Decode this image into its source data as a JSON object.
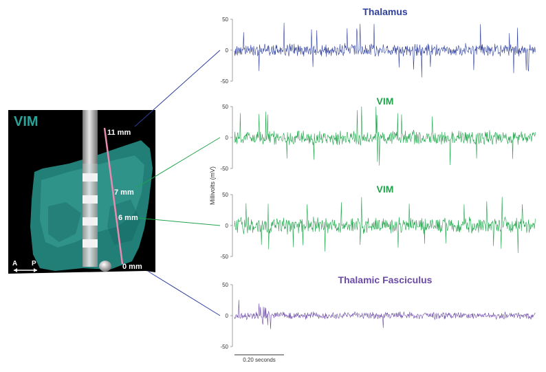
{
  "anatomy": {
    "label": "VIM",
    "orientation": {
      "anterior": "A",
      "posterior": "P"
    },
    "depth_markers": [
      {
        "id": "11",
        "label": "11 mm"
      },
      {
        "id": "7",
        "label": "7 mm"
      },
      {
        "id": "6",
        "label": "6 mm"
      },
      {
        "id": "0",
        "label": "0 mm"
      }
    ]
  },
  "y_axis_label": "Millivolts (mV)",
  "scale_bar_label": "0.20 seconds",
  "colors": {
    "thalamus": "#2e3f9c",
    "vim": "#1fa34a",
    "fasciculus": "#6a4aa6",
    "volume": "#2aa398",
    "lead_pink": "#e98ab0",
    "connector_blue": "#2e3f9c",
    "connector_green": "#1fa34a"
  },
  "traces": [
    {
      "id": "thalamus",
      "title": "Thalamus",
      "color": "#2e3f9c",
      "ticks": [
        "50",
        "0",
        "-50"
      ]
    },
    {
      "id": "vim1",
      "title": "VIM",
      "color": "#1fa34a",
      "ticks": [
        "50",
        "0",
        "-50"
      ]
    },
    {
      "id": "vim2",
      "title": "VIM",
      "color": "#1fa34a",
      "ticks": [
        "50",
        "0",
        "-50"
      ]
    },
    {
      "id": "fasciculus",
      "title": "Thalamic Fasciculus",
      "color": "#6a4aa6",
      "ticks": [
        "50",
        "0",
        "-50"
      ]
    }
  ]
}
